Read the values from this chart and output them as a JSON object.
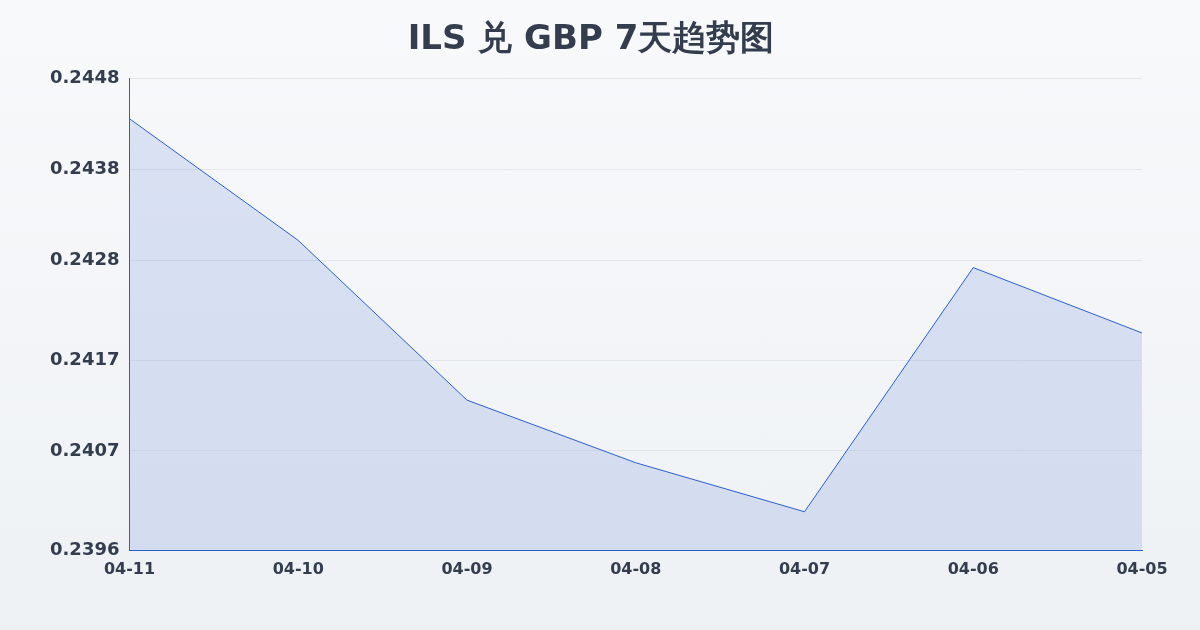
{
  "chart_data": {
    "type": "area",
    "title": "ILS 兑 GBP 7天趋势图",
    "categories": [
      "04-11",
      "04-10",
      "04-09",
      "04-08",
      "04-07",
      "04-06",
      "04-05"
    ],
    "series": [
      {
        "color": "#2a5fd0",
        "values": [
          0.24436,
          0.24302,
          0.24126,
          0.24057,
          0.24003,
          0.24272,
          0.242
        ]
      }
    ],
    "ylim": [
      0.2396,
      0.2448
    ],
    "yticks": [
      {
        "value": 0.2396,
        "label": "0.2396"
      },
      {
        "value": 0.2407,
        "label": "0.2407"
      },
      {
        "value": 0.2417,
        "label": "0.2417"
      },
      {
        "value": 0.2428,
        "label": "0.2428"
      },
      {
        "value": 0.2438,
        "label": "0.2438"
      },
      {
        "value": 0.2448,
        "label": "0.2448"
      }
    ],
    "grid": "y",
    "legend": false,
    "marker": "none",
    "line_style": "solid"
  }
}
